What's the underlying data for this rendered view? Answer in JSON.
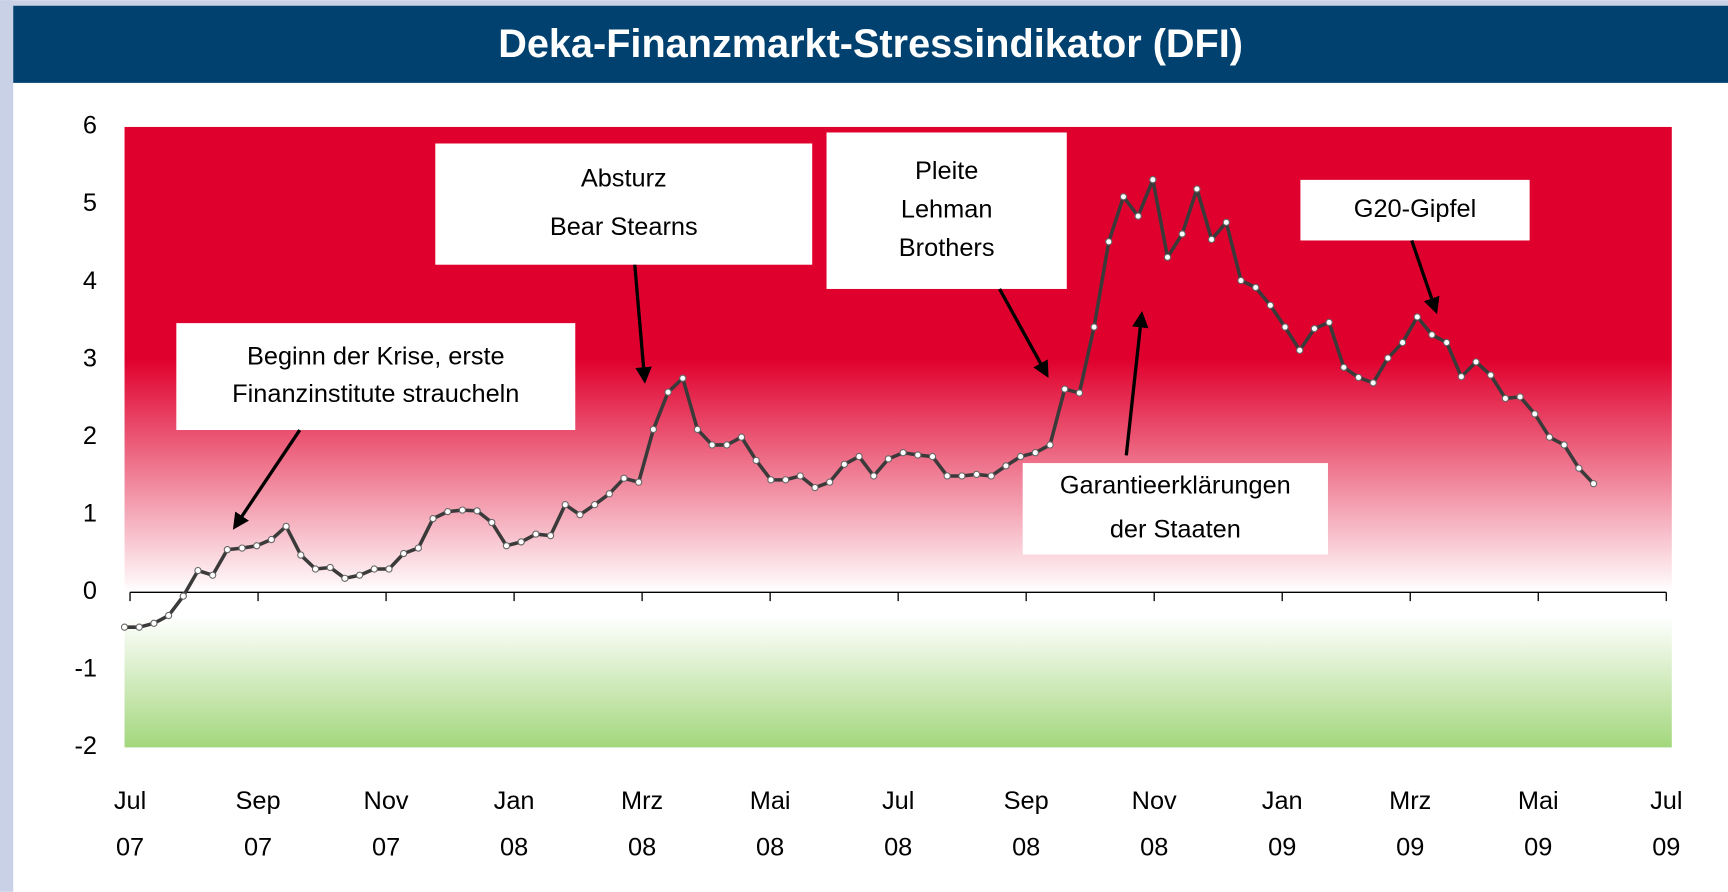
{
  "chart_data": {
    "type": "line",
    "title": "Deka-Finanzmarkt-Stressindikator (DFI)",
    "x_labels": [
      [
        "Jul",
        "07"
      ],
      [
        "Sep",
        "07"
      ],
      [
        "Nov",
        "07"
      ],
      [
        "Jan",
        "08"
      ],
      [
        "Mrz",
        "08"
      ],
      [
        "Mai",
        "08"
      ],
      [
        "Jul",
        "08"
      ],
      [
        "Sep",
        "08"
      ],
      [
        "Nov",
        "08"
      ],
      [
        "Jan",
        "09"
      ],
      [
        "Mrz",
        "09"
      ],
      [
        "Mai",
        "09"
      ],
      [
        "Jul",
        "09"
      ]
    ],
    "values": [
      -0.45,
      -0.45,
      -0.4,
      -0.3,
      -0.05,
      0.28,
      0.22,
      0.55,
      0.57,
      0.6,
      0.68,
      0.85,
      0.48,
      0.3,
      0.32,
      0.18,
      0.22,
      0.3,
      0.3,
      0.5,
      0.57,
      0.95,
      1.04,
      1.06,
      1.05,
      0.9,
      0.6,
      0.65,
      0.75,
      0.73,
      1.13,
      1.0,
      1.13,
      1.27,
      1.47,
      1.42,
      2.1,
      2.58,
      2.76,
      2.1,
      1.9,
      1.9,
      2.0,
      1.7,
      1.45,
      1.45,
      1.5,
      1.35,
      1.42,
      1.65,
      1.75,
      1.5,
      1.72,
      1.8,
      1.77,
      1.75,
      1.5,
      1.5,
      1.52,
      1.5,
      1.63,
      1.75,
      1.8,
      1.9,
      2.62,
      2.57,
      3.42,
      4.52,
      5.1,
      4.85,
      5.32,
      4.32,
      4.62,
      5.2,
      4.55,
      4.77,
      4.02,
      3.93,
      3.7,
      3.42,
      3.12,
      3.4,
      3.48,
      2.9,
      2.77,
      2.7,
      3.02,
      3.22,
      3.55,
      3.32,
      3.22,
      2.78,
      2.97,
      2.8,
      2.5,
      2.52,
      2.3,
      2.0,
      1.9,
      1.6,
      1.4
    ],
    "color": "#3a3a3a",
    "ylim": [
      -2,
      6
    ],
    "yticks": [
      -2,
      -1,
      0,
      1,
      2,
      3,
      4,
      5,
      6
    ],
    "annotations": [
      {
        "lines": [
          "Beginn der Krise, erste",
          "Finanzinstitute straucheln"
        ]
      },
      {
        "lines": [
          "Absturz",
          "Bear Stearns"
        ]
      },
      {
        "lines": [
          "Pleite",
          "Lehman",
          "Brothers"
        ]
      },
      {
        "lines": [
          "G20-Gipfel"
        ]
      },
      {
        "lines": [
          "Garantieerklärungen",
          "der Staaten"
        ]
      }
    ]
  }
}
